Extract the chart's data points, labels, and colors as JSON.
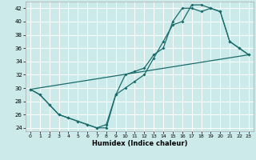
{
  "xlabel": "Humidex (Indice chaleur)",
  "bg_color": "#cceaea",
  "grid_color": "#ffffff",
  "line_color": "#1a6b6b",
  "xlim": [
    -0.5,
    23.5
  ],
  "ylim": [
    23.5,
    43.0
  ],
  "xticks": [
    0,
    1,
    2,
    3,
    4,
    5,
    6,
    7,
    8,
    9,
    10,
    11,
    12,
    13,
    14,
    15,
    16,
    17,
    18,
    19,
    20,
    21,
    22,
    23
  ],
  "yticks": [
    24,
    26,
    28,
    30,
    32,
    34,
    36,
    38,
    40,
    42
  ],
  "line1_x": [
    0,
    1,
    2,
    3,
    4,
    5,
    6,
    7,
    8,
    9,
    10,
    11,
    12,
    13,
    14,
    15,
    16,
    17,
    18,
    19,
    20,
    21,
    22,
    23
  ],
  "line1_y": [
    29.8,
    29.0,
    27.5,
    26.0,
    25.5,
    25.0,
    24.5,
    24.0,
    24.5,
    29.0,
    30.0,
    31.0,
    32.0,
    34.5,
    37.0,
    39.5,
    40.0,
    42.5,
    42.5,
    42.0,
    41.5,
    37.0,
    36.0,
    35.0
  ],
  "line2_x": [
    0,
    1,
    2,
    3,
    4,
    5,
    6,
    7,
    8,
    9,
    10,
    11,
    12,
    13,
    14,
    15,
    16,
    17,
    18,
    19,
    20,
    21,
    22,
    23
  ],
  "line2_y": [
    29.8,
    29.0,
    27.5,
    26.0,
    25.5,
    25.0,
    24.5,
    24.0,
    24.0,
    29.0,
    32.0,
    32.5,
    33.0,
    35.0,
    36.0,
    40.0,
    42.0,
    42.0,
    41.5,
    42.0,
    41.5,
    37.0,
    36.0,
    35.0
  ],
  "line3_x": [
    0,
    23
  ],
  "line3_y": [
    29.8,
    35.0
  ]
}
